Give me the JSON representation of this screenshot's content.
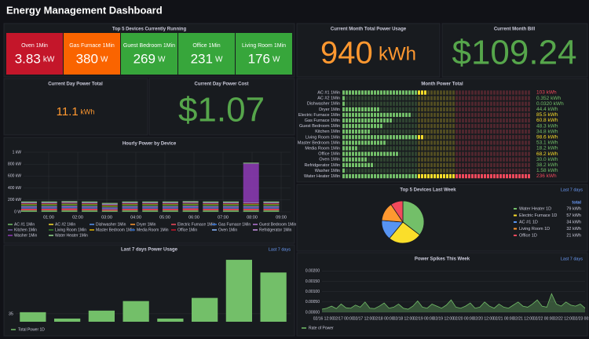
{
  "header": {
    "title": "Energy Management Dashboard"
  },
  "top_devices": {
    "title": "Top 5 Devices Currently Running",
    "items": [
      {
        "name": "Oven 1Min",
        "value": 3.83,
        "unit": "kW",
        "color": "#c4162a"
      },
      {
        "name": "Gas Furnace 1Min",
        "value": 380,
        "unit": "W",
        "color": "#fa6400"
      },
      {
        "name": "Guest Bedroom 1Min",
        "value": 269,
        "unit": "W",
        "color": "#37a63b"
      },
      {
        "name": "Office 1Min",
        "value": 231,
        "unit": "W",
        "color": "#37a63b"
      },
      {
        "name": "Living Room 1Min",
        "value": 176,
        "unit": "W",
        "color": "#37a63b"
      }
    ]
  },
  "month_usage": {
    "title": "Current Month Total Power Usage",
    "value": 940,
    "unit": "kWh",
    "color": "#ff9830"
  },
  "month_bill": {
    "title": "Current Month Bill",
    "value": "$109.24",
    "color": "#56a64b"
  },
  "day_total": {
    "title": "Current Day Power Total",
    "value": 11.1,
    "unit": "kWh",
    "color": "#ff9830"
  },
  "day_cost": {
    "title": "Current Day Power Cost",
    "value": "$1.07",
    "color": "#56a64b"
  },
  "month_power": {
    "title": "Month Power Total",
    "rows": [
      {
        "name": "AC #1 1Min",
        "value": 103,
        "label": "103 kWh",
        "color": "#f2495c"
      },
      {
        "name": "AC #2 1Min",
        "value": 0.352,
        "label": "0.352 kWh",
        "color": "#73bf69"
      },
      {
        "name": "Dishwasher 1Min",
        "value": 0.032,
        "label": "0.0320 kWh",
        "color": "#73bf69"
      },
      {
        "name": "Dryer 1Min",
        "value": 44.4,
        "label": "44.4 kWh",
        "color": "#73bf69"
      },
      {
        "name": "Electric Furnace 1Min",
        "value": 85.5,
        "label": "85.5 kWh",
        "color": "#fade2a"
      },
      {
        "name": "Gas Furnace 1Min",
        "value": 60.8,
        "label": "60.8 kWh",
        "color": "#fade2a"
      },
      {
        "name": "Guest Bedroom 1Min",
        "value": 48.3,
        "label": "48.3 kWh",
        "color": "#73bf69"
      },
      {
        "name": "Kitchen 1Min",
        "value": 34.8,
        "label": "34.8 kWh",
        "color": "#73bf69"
      },
      {
        "name": "Living Room 1Min",
        "value": 98.6,
        "label": "98.6 kWh",
        "color": "#fade2a"
      },
      {
        "name": "Master Bedroom 1Min",
        "value": 53.1,
        "label": "53.1 kWh",
        "color": "#73bf69"
      },
      {
        "name": "Media Room 1Min",
        "value": 18.2,
        "label": "18.2 kWh",
        "color": "#73bf69"
      },
      {
        "name": "Office 1Min",
        "value": 68.2,
        "label": "68.2 kWh",
        "color": "#fade2a"
      },
      {
        "name": "Oven 1Min",
        "value": 30.0,
        "label": "30.0 kWh",
        "color": "#73bf69"
      },
      {
        "name": "Refridgerator 1Min",
        "value": 38.2,
        "label": "38.2 kWh",
        "color": "#73bf69"
      },
      {
        "name": "Washer 1Min",
        "value": 1.58,
        "label": "1.58 kWh",
        "color": "#73bf69"
      },
      {
        "name": "Water Heater 1Min",
        "value": 236,
        "label": "236 kWh",
        "color": "#f2495c"
      }
    ]
  },
  "hourly": {
    "type": "bar",
    "title": "Hourly Power by Device",
    "xticks": [
      "01:00",
      "02:00",
      "03:00",
      "04:00",
      "05:00",
      "06:00",
      "07:00",
      "08:00",
      "09:00"
    ],
    "ylim": [
      0,
      1000
    ],
    "yticks": [
      {
        "value": 0,
        "label": "0 W"
      },
      {
        "value": 200,
        "label": "200 kW"
      },
      {
        "value": 400,
        "label": "400 kW"
      },
      {
        "value": 600,
        "label": "600 kW"
      },
      {
        "value": 800,
        "label": "800 kW"
      },
      {
        "value": 1000,
        "label": "1 kW"
      }
    ],
    "series": [
      {
        "name": "AC #1 1Min",
        "color": "#73bf69",
        "values": [
          25,
          25,
          25,
          25,
          20,
          25,
          25,
          25,
          25,
          25,
          25,
          25,
          25
        ]
      },
      {
        "name": "AC #2 1Min",
        "color": "#fade2a",
        "values": [
          0,
          0,
          0,
          0,
          0,
          0,
          0,
          0,
          0,
          0,
          0,
          0,
          0
        ]
      },
      {
        "name": "Dishwasher 1Min",
        "color": "#5794f2",
        "values": [
          0,
          0,
          0,
          0,
          0,
          0,
          0,
          0,
          0,
          0,
          0,
          0,
          0
        ]
      },
      {
        "name": "Dryer 1Min",
        "color": "#ff9830",
        "values": [
          0,
          0,
          0,
          0,
          0,
          0,
          0,
          0,
          0,
          0,
          0,
          0,
          0
        ]
      },
      {
        "name": "Electric Furnace 1Min",
        "color": "#f2495c",
        "values": [
          30,
          30,
          35,
          30,
          25,
          30,
          30,
          30,
          35,
          30,
          30,
          30,
          30
        ]
      },
      {
        "name": "Gas Furnace 1Min",
        "color": "#3274d9",
        "values": [
          20,
          20,
          20,
          20,
          15,
          20,
          20,
          20,
          20,
          20,
          20,
          20,
          20
        ]
      },
      {
        "name": "Guest Bedroom 1Min",
        "color": "#b877d9",
        "values": [
          15,
          15,
          15,
          15,
          10,
          15,
          15,
          15,
          15,
          15,
          15,
          15,
          15
        ]
      },
      {
        "name": "Kitchen 1Min",
        "color": "#705da0",
        "values": [
          10,
          10,
          10,
          10,
          10,
          10,
          10,
          10,
          10,
          10,
          10,
          10,
          10
        ]
      },
      {
        "name": "Living Room 1Min",
        "color": "#37872d",
        "values": [
          20,
          20,
          20,
          20,
          15,
          20,
          20,
          20,
          20,
          20,
          20,
          20,
          20
        ]
      },
      {
        "name": "Master Bedroom 1Min",
        "color": "#e0b400",
        "values": [
          10,
          10,
          10,
          10,
          10,
          10,
          10,
          10,
          10,
          10,
          10,
          10,
          10
        ]
      },
      {
        "name": "Media Room 1Min",
        "color": "#1f60c4",
        "values": [
          5,
          5,
          5,
          5,
          5,
          5,
          5,
          5,
          5,
          5,
          5,
          5,
          5
        ]
      },
      {
        "name": "Office 1Min",
        "color": "#c4162a",
        "values": [
          10,
          10,
          10,
          10,
          10,
          10,
          10,
          10,
          10,
          10,
          10,
          10,
          10
        ]
      },
      {
        "name": "Oven 1Min",
        "color": "#8ab8ff",
        "values": [
          5,
          5,
          5,
          5,
          5,
          5,
          5,
          5,
          5,
          5,
          5,
          5,
          5
        ]
      },
      {
        "name": "Refridgerator 1Min",
        "color": "#ca95e5",
        "values": [
          10,
          10,
          10,
          10,
          10,
          10,
          10,
          10,
          10,
          10,
          10,
          10,
          10
        ]
      },
      {
        "name": "Washer 1Min",
        "color": "#8f3bb8",
        "values": [
          0,
          0,
          0,
          0,
          0,
          0,
          0,
          0,
          0,
          0,
          0,
          650,
          0
        ]
      },
      {
        "name": "Water Heater 1Min",
        "color": "#96d98d",
        "values": [
          15,
          15,
          15,
          15,
          15,
          15,
          15,
          15,
          15,
          15,
          15,
          15,
          15
        ]
      }
    ]
  },
  "pie": {
    "type": "pie",
    "title": "Top 5 Devices Last Week",
    "link": "Last 7 days",
    "column": "total",
    "categories": [
      "Water Heater 1D",
      "Electric Furnace 1D",
      "AC #1 1D",
      "Living Room 1D",
      "Office 1D"
    ],
    "values": [
      79,
      57,
      34,
      32,
      21
    ],
    "value_labels": [
      "79 kWh",
      "57 kWh",
      "34 kWh",
      "32 kWh",
      "21 kWh"
    ],
    "colors": [
      "#73bf69",
      "#fade2a",
      "#5794f2",
      "#ff9830",
      "#f2495c"
    ]
  },
  "last7": {
    "type": "bar",
    "title": "Last 7 days Power Usage",
    "link": "Last 7 days",
    "series": [
      {
        "name": "Total Power 1D",
        "color": "#73bf69",
        "values": [
          36,
          32,
          37,
          43,
          32,
          45,
          69,
          61
        ]
      }
    ],
    "ylim": [
      30,
      72
    ],
    "yticks": [
      35
    ]
  },
  "spikes": {
    "type": "area",
    "title": "Power Spikes This Week",
    "link": "Last 7 days",
    "xticks": [
      "02/16 12:00",
      "02/17 00:00",
      "02/17 12:00",
      "02/18 00:00",
      "02/18 12:00",
      "02/19 00:00",
      "02/19 12:00",
      "02/20 00:00",
      "02/20 12:00",
      "02/21 00:00",
      "02/21 12:00",
      "02/22 00:00",
      "02/22 12:00",
      "02/23 00:00"
    ],
    "ylim": [
      0,
      0.0022
    ],
    "yticks": [
      {
        "value": 0,
        "label": "0.00000"
      },
      {
        "value": 0.0005,
        "label": "0.00050"
      },
      {
        "value": 0.001,
        "label": "0.00100"
      },
      {
        "value": 0.0015,
        "label": "0.00150"
      },
      {
        "value": 0.002,
        "label": "0.00200"
      }
    ],
    "series": [
      {
        "name": "Rate of Power",
        "color": "#73bf69",
        "values": [
          0.00015,
          0.0002,
          0.0003,
          0.00018,
          0.0004,
          0.00022,
          0.0002,
          0.00035,
          0.00025,
          0.0005,
          0.0002,
          0.00018,
          0.0003,
          0.00045,
          0.0002,
          0.00025,
          0.0004,
          0.0002,
          0.00015,
          0.0003,
          0.00055,
          0.00025,
          0.0002,
          0.0004,
          0.0003,
          0.0002,
          0.00035,
          0.0006,
          0.00025,
          0.0002,
          0.0003,
          0.00045,
          0.0002,
          0.00025,
          0.0005,
          0.0003,
          0.0002,
          0.0004,
          0.00025,
          0.0002,
          0.00035,
          0.0005,
          0.0003,
          0.00025,
          0.0004,
          0.0006,
          0.0003,
          0.00025,
          0.0009,
          0.0004,
          0.0003,
          0.0005,
          0.00035,
          0.0003,
          0.0004,
          0.0002
        ]
      }
    ]
  }
}
